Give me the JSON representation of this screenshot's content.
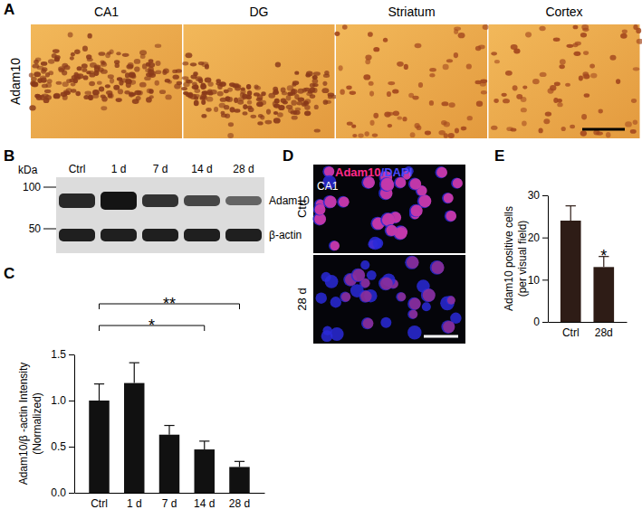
{
  "chart_data": [
    {
      "type": "bar",
      "categories": [
        "Ctrl",
        "1 d",
        "7 d",
        "14 d",
        "28 d"
      ],
      "values": [
        1.0,
        1.19,
        0.63,
        0.47,
        0.28
      ],
      "errors": [
        0.18,
        0.22,
        0.1,
        0.09,
        0.06
      ],
      "color": "#111111",
      "ylabel": [
        "Adam10/β -actin Intensity",
        "(Normalized)"
      ],
      "ylim": [
        0,
        1.5
      ],
      "yticks": [
        {
          "value": 0,
          "label": "0.0"
        },
        {
          "value": 0.5,
          "label": "0.5"
        },
        {
          "value": 1,
          "label": "1.0"
        },
        {
          "value": 1.5,
          "label": "1.5"
        }
      ],
      "annotations": [
        {
          "text": "**",
          "categories": [
            "Ctrl",
            "28 d"
          ]
        },
        {
          "text": "*",
          "categories": [
            "Ctrl",
            "14 d"
          ]
        }
      ]
    },
    {
      "type": "bar",
      "categories": [
        "Ctrl",
        "28d"
      ],
      "values": [
        24,
        13
      ],
      "errors": [
        3.5,
        2.5
      ],
      "color": "#2e1c16",
      "ylabel": [
        "Adam10 positive cells",
        "(per visual field)"
      ],
      "ylim": [
        0,
        30
      ],
      "yticks": [
        0,
        10,
        20,
        30
      ],
      "annotations": [
        {
          "text": "*",
          "categories": [
            "28d"
          ]
        }
      ]
    }
  ],
  "panels": {
    "letters": [
      "A",
      "B",
      "C",
      "D",
      "E"
    ],
    "A": {
      "row_label": "Adam10",
      "regions": [
        "CA1",
        "DG",
        "Striatum",
        "Cortex"
      ]
    },
    "B": {
      "unit": "kDa",
      "markers": [
        100,
        50
      ],
      "lanes": [
        "Ctrl",
        "1 d",
        "7 d",
        "14 d",
        "28 d"
      ],
      "bands": [
        "Adam10",
        "β-actin"
      ]
    },
    "D": {
      "stain": [
        "Adam10",
        "/DAPI"
      ],
      "region": "CA1",
      "conditions": [
        "Ctrl",
        "28 d"
      ]
    }
  }
}
